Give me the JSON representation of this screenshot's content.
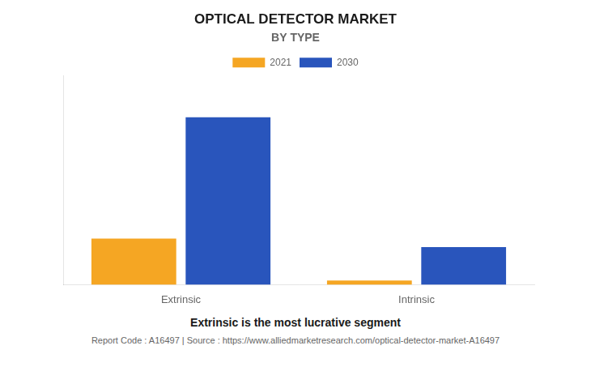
{
  "chart_data": {
    "type": "bar",
    "title": "OPTICAL DETECTOR MARKET",
    "subtitle": "BY TYPE",
    "categories": [
      "Extrinsic",
      "Intrinsic"
    ],
    "series": [
      {
        "name": "2021",
        "color": "#F5A623",
        "values": [
          22,
          2
        ]
      },
      {
        "name": "2030",
        "color": "#2955BC",
        "values": [
          80,
          18
        ]
      }
    ],
    "ylim": [
      0,
      100
    ],
    "grid": false,
    "legend": "top",
    "tick_labels": "x",
    "annotations": [
      "Extrinsic is the most lucrative segment",
      "Report Code : A16497  |  Source : https://www.alliedmarketresearch.com/optical-detector-market-A16497"
    ]
  }
}
